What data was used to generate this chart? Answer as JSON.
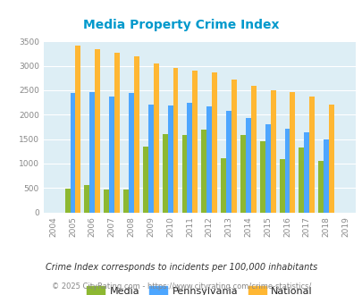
{
  "title": "Media Property Crime Index",
  "years": [
    2004,
    2005,
    2006,
    2007,
    2008,
    2009,
    2010,
    2011,
    2012,
    2013,
    2014,
    2015,
    2016,
    2017,
    2018,
    2019
  ],
  "media": [
    null,
    490,
    555,
    475,
    465,
    1340,
    1610,
    1590,
    1700,
    1115,
    1590,
    1450,
    1090,
    1330,
    1055,
    null
  ],
  "pennsylvania": [
    null,
    2450,
    2470,
    2370,
    2440,
    2210,
    2190,
    2240,
    2165,
    2075,
    1940,
    1800,
    1720,
    1635,
    1490,
    null
  ],
  "national": [
    null,
    3420,
    3330,
    3260,
    3200,
    3040,
    2950,
    2900,
    2855,
    2720,
    2590,
    2490,
    2465,
    2370,
    2205,
    null
  ],
  "color_media": "#8db832",
  "color_pennsylvania": "#4da6ff",
  "color_national": "#ffb733",
  "bg_color": "#ddeef5",
  "title_color": "#0099cc",
  "ylim": [
    0,
    3500
  ],
  "yticks": [
    0,
    500,
    1000,
    1500,
    2000,
    2500,
    3000,
    3500
  ],
  "footnote1": "Crime Index corresponds to incidents per 100,000 inhabitants",
  "footnote2": "© 2025 CityRating.com - https://www.cityrating.com/crime-statistics/",
  "bar_width": 0.27
}
